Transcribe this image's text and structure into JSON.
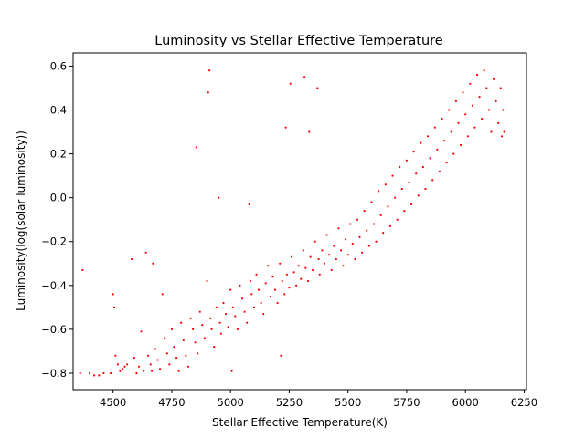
{
  "chart_data": {
    "type": "scatter",
    "title": "Luminosity vs Stellar Effective Temperature",
    "xlabel": "Stellar Effective Temperature(K)",
    "ylabel": "Luminosity(log(solar luminosity))",
    "xlim": [
      4330,
      6260
    ],
    "ylim": [
      -0.875,
      0.66
    ],
    "xticks": [
      4500,
      4750,
      5000,
      5250,
      5500,
      5750,
      6000,
      6250
    ],
    "yticks": [
      -0.8,
      -0.6,
      -0.4,
      -0.2,
      0.0,
      0.2,
      0.4,
      0.6
    ],
    "xtick_labels": [
      "4500",
      "4750",
      "5000",
      "5250",
      "5500",
      "5750",
      "6000",
      "6250"
    ],
    "ytick_labels": [
      "−0.8",
      "−0.6",
      "−0.4",
      "−0.2",
      "0.0",
      "0.2",
      "0.4",
      "0.6"
    ],
    "grid": false,
    "marker_color": "#ff0000",
    "series": [
      {
        "points": [
          [
            4370,
            -0.33
          ],
          [
            4360,
            -0.8
          ],
          [
            4400,
            -0.8
          ],
          [
            4420,
            -0.81
          ],
          [
            4440,
            -0.81
          ],
          [
            4460,
            -0.8
          ],
          [
            4490,
            -0.8
          ],
          [
            4500,
            -0.44
          ],
          [
            4505,
            -0.5
          ],
          [
            4510,
            -0.72
          ],
          [
            4520,
            -0.76
          ],
          [
            4530,
            -0.79
          ],
          [
            4540,
            -0.78
          ],
          [
            4550,
            -0.77
          ],
          [
            4560,
            -0.76
          ],
          [
            4580,
            -0.28
          ],
          [
            4590,
            -0.73
          ],
          [
            4600,
            -0.8
          ],
          [
            4610,
            -0.77
          ],
          [
            4620,
            -0.61
          ],
          [
            4630,
            -0.79
          ],
          [
            4640,
            -0.25
          ],
          [
            4650,
            -0.72
          ],
          [
            4660,
            -0.76
          ],
          [
            4665,
            -0.79
          ],
          [
            4670,
            -0.3
          ],
          [
            4680,
            -0.69
          ],
          [
            4690,
            -0.74
          ],
          [
            4700,
            -0.78
          ],
          [
            4710,
            -0.44
          ],
          [
            4720,
            -0.64
          ],
          [
            4730,
            -0.71
          ],
          [
            4740,
            -0.76
          ],
          [
            4750,
            -0.6
          ],
          [
            4760,
            -0.68
          ],
          [
            4770,
            -0.73
          ],
          [
            4780,
            -0.79
          ],
          [
            4790,
            -0.57
          ],
          [
            4800,
            -0.65
          ],
          [
            4810,
            -0.72
          ],
          [
            4820,
            -0.77
          ],
          [
            4830,
            -0.55
          ],
          [
            4840,
            -0.6
          ],
          [
            4850,
            -0.66
          ],
          [
            4855,
            0.23
          ],
          [
            4860,
            -0.71
          ],
          [
            4870,
            -0.52
          ],
          [
            4880,
            -0.58
          ],
          [
            4890,
            -0.64
          ],
          [
            4900,
            -0.38
          ],
          [
            4905,
            0.48
          ],
          [
            4910,
            0.58
          ],
          [
            4915,
            -0.55
          ],
          [
            4920,
            -0.6
          ],
          [
            4930,
            -0.68
          ],
          [
            4940,
            -0.5
          ],
          [
            4950,
            0.0
          ],
          [
            4955,
            -0.57
          ],
          [
            4960,
            -0.62
          ],
          [
            4970,
            -0.48
          ],
          [
            4980,
            -0.53
          ],
          [
            4990,
            -0.59
          ],
          [
            5000,
            -0.42
          ],
          [
            5005,
            -0.79
          ],
          [
            5010,
            -0.5
          ],
          [
            5020,
            -0.54
          ],
          [
            5030,
            -0.6
          ],
          [
            5040,
            -0.4
          ],
          [
            5050,
            -0.46
          ],
          [
            5060,
            -0.52
          ],
          [
            5070,
            -0.57
          ],
          [
            5080,
            -0.03
          ],
          [
            5085,
            -0.38
          ],
          [
            5090,
            -0.44
          ],
          [
            5100,
            -0.5
          ],
          [
            5110,
            -0.35
          ],
          [
            5120,
            -0.42
          ],
          [
            5130,
            -0.48
          ],
          [
            5140,
            -0.53
          ],
          [
            5150,
            -0.39
          ],
          [
            5160,
            -0.31
          ],
          [
            5170,
            -0.45
          ],
          [
            5180,
            -0.36
          ],
          [
            5190,
            -0.42
          ],
          [
            5200,
            -0.48
          ],
          [
            5210,
            -0.3
          ],
          [
            5215,
            -0.72
          ],
          [
            5220,
            -0.38
          ],
          [
            5230,
            -0.44
          ],
          [
            5235,
            0.32
          ],
          [
            5240,
            -0.35
          ],
          [
            5250,
            -0.41
          ],
          [
            5255,
            0.52
          ],
          [
            5260,
            -0.27
          ],
          [
            5270,
            -0.34
          ],
          [
            5280,
            -0.4
          ],
          [
            5290,
            -0.31
          ],
          [
            5300,
            -0.37
          ],
          [
            5310,
            -0.24
          ],
          [
            5315,
            0.55
          ],
          [
            5320,
            -0.32
          ],
          [
            5330,
            -0.38
          ],
          [
            5335,
            0.3
          ],
          [
            5340,
            -0.27
          ],
          [
            5350,
            -0.33
          ],
          [
            5360,
            -0.2
          ],
          [
            5370,
            0.5
          ],
          [
            5375,
            -0.28
          ],
          [
            5380,
            -0.35
          ],
          [
            5390,
            -0.24
          ],
          [
            5400,
            -0.3
          ],
          [
            5410,
            -0.17
          ],
          [
            5420,
            -0.26
          ],
          [
            5430,
            -0.33
          ],
          [
            5440,
            -0.22
          ],
          [
            5450,
            -0.28
          ],
          [
            5460,
            -0.14
          ],
          [
            5470,
            -0.24
          ],
          [
            5480,
            -0.31
          ],
          [
            5490,
            -0.19
          ],
          [
            5500,
            -0.26
          ],
          [
            5510,
            -0.12
          ],
          [
            5520,
            -0.21
          ],
          [
            5530,
            -0.28
          ],
          [
            5540,
            -0.1
          ],
          [
            5550,
            -0.18
          ],
          [
            5560,
            -0.25
          ],
          [
            5570,
            -0.06
          ],
          [
            5580,
            -0.15
          ],
          [
            5590,
            -0.22
          ],
          [
            5600,
            -0.02
          ],
          [
            5610,
            -0.12
          ],
          [
            5620,
            -0.2
          ],
          [
            5630,
            0.03
          ],
          [
            5640,
            -0.08
          ],
          [
            5650,
            -0.16
          ],
          [
            5660,
            0.06
          ],
          [
            5670,
            -0.04
          ],
          [
            5680,
            -0.13
          ],
          [
            5690,
            0.1
          ],
          [
            5700,
            0.0
          ],
          [
            5710,
            -0.1
          ],
          [
            5720,
            0.14
          ],
          [
            5730,
            0.04
          ],
          [
            5740,
            -0.06
          ],
          [
            5750,
            0.17
          ],
          [
            5760,
            0.07
          ],
          [
            5770,
            -0.03
          ],
          [
            5780,
            0.21
          ],
          [
            5790,
            0.11
          ],
          [
            5800,
            0.01
          ],
          [
            5810,
            0.25
          ],
          [
            5820,
            0.14
          ],
          [
            5830,
            0.04
          ],
          [
            5840,
            0.28
          ],
          [
            5850,
            0.18
          ],
          [
            5860,
            0.08
          ],
          [
            5870,
            0.32
          ],
          [
            5880,
            0.22
          ],
          [
            5890,
            0.12
          ],
          [
            5900,
            0.36
          ],
          [
            5910,
            0.26
          ],
          [
            5920,
            0.16
          ],
          [
            5930,
            0.4
          ],
          [
            5940,
            0.3
          ],
          [
            5950,
            0.2
          ],
          [
            5960,
            0.44
          ],
          [
            5970,
            0.34
          ],
          [
            5980,
            0.24
          ],
          [
            5990,
            0.48
          ],
          [
            6000,
            0.38
          ],
          [
            6010,
            0.28
          ],
          [
            6020,
            0.52
          ],
          [
            6030,
            0.42
          ],
          [
            6040,
            0.32
          ],
          [
            6050,
            0.56
          ],
          [
            6060,
            0.46
          ],
          [
            6070,
            0.36
          ],
          [
            6080,
            0.58
          ],
          [
            6090,
            0.5
          ],
          [
            6100,
            0.4
          ],
          [
            6110,
            0.3
          ],
          [
            6120,
            0.54
          ],
          [
            6130,
            0.44
          ],
          [
            6140,
            0.34
          ],
          [
            6150,
            0.5
          ],
          [
            6155,
            0.28
          ],
          [
            6160,
            0.4
          ],
          [
            6165,
            0.3
          ]
        ]
      }
    ]
  }
}
